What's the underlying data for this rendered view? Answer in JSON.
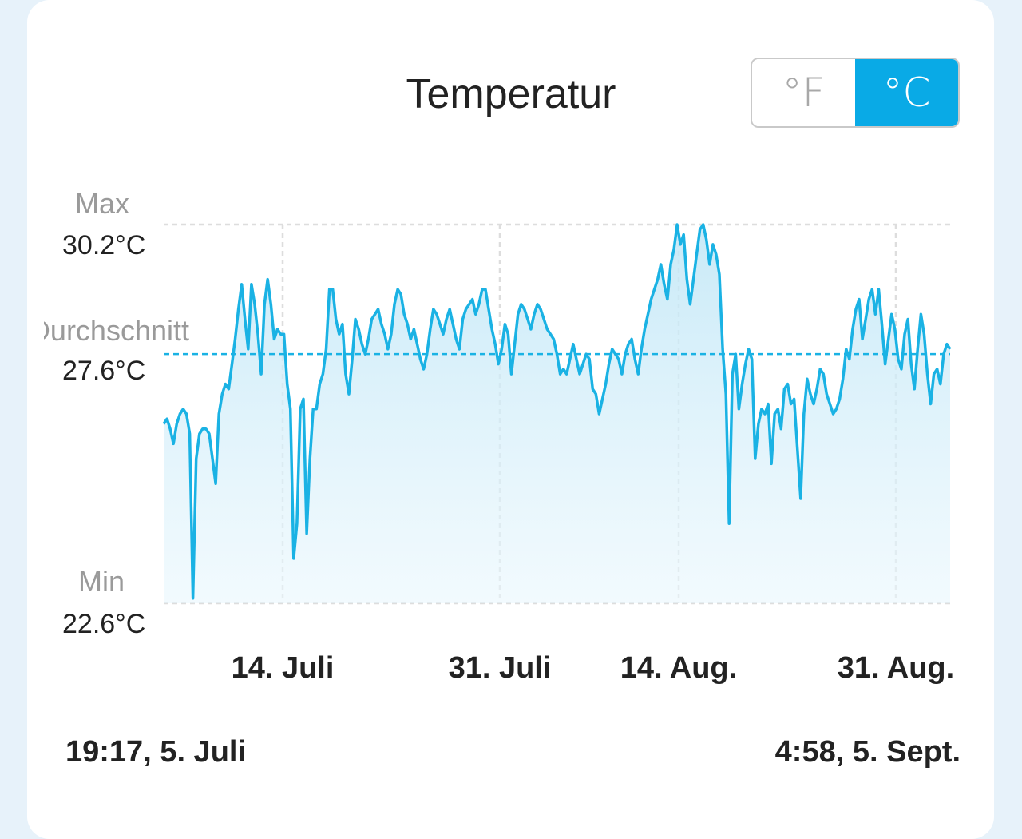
{
  "title": "Temperatur",
  "units": {
    "fahrenheit": "°F",
    "celsius": "°C",
    "selected": "celsius"
  },
  "colors": {
    "accent": "#09aae6",
    "line": "#1ab2e4"
  },
  "chart_data": {
    "type": "area",
    "title": "Temperatur",
    "y_unit": "°C",
    "ylim": [
      22.6,
      30.2
    ],
    "max": {
      "label": "Max",
      "value_text": "30.2°C",
      "value": 30.2
    },
    "avg": {
      "label": "Durchschnitt",
      "value_text": "27.6°C",
      "value": 27.6
    },
    "min": {
      "label": "Min",
      "value_text": "22.6°C",
      "value": 22.6
    },
    "x_start": "19:17,  5. Juli",
    "x_end": "4:58,  5. Sept.",
    "x_ticks": [
      "14. Juli",
      "31. Juli",
      "14. Aug.",
      "31. Aug."
    ],
    "grid": true,
    "series": [
      {
        "values": [
          26.2,
          26.3,
          26.1,
          25.8,
          26.2,
          26.4,
          26.5,
          26.4,
          26.0,
          22.7,
          25.5,
          26.0,
          26.1,
          26.1,
          26.0,
          25.5,
          25.0,
          26.4,
          26.8,
          27.0,
          26.9,
          27.4,
          27.9,
          28.5,
          29.0,
          28.3,
          27.7,
          29.0,
          28.6,
          28.0,
          27.2,
          28.6,
          29.1,
          28.6,
          27.9,
          28.1,
          28.0,
          28.0,
          27.0,
          26.5,
          23.5,
          24.2,
          26.5,
          26.7,
          24.0,
          25.5,
          26.5,
          26.5,
          27.0,
          27.2,
          27.7,
          28.9,
          28.9,
          28.3,
          28.0,
          28.2,
          27.2,
          26.8,
          27.5,
          28.3,
          28.1,
          27.8,
          27.6,
          27.9,
          28.3,
          28.4,
          28.5,
          28.2,
          28.0,
          27.7,
          28.0,
          28.6,
          28.9,
          28.8,
          28.4,
          28.2,
          27.9,
          28.1,
          27.8,
          27.5,
          27.3,
          27.6,
          28.1,
          28.5,
          28.4,
          28.2,
          28.0,
          28.3,
          28.5,
          28.2,
          27.9,
          27.7,
          28.3,
          28.5,
          28.6,
          28.7,
          28.4,
          28.6,
          28.9,
          28.9,
          28.5,
          28.1,
          27.8,
          27.4,
          27.7,
          28.2,
          28.0,
          27.2,
          27.8,
          28.4,
          28.6,
          28.5,
          28.3,
          28.1,
          28.4,
          28.6,
          28.5,
          28.3,
          28.1,
          28.0,
          27.9,
          27.6,
          27.2,
          27.3,
          27.2,
          27.5,
          27.8,
          27.5,
          27.2,
          27.4,
          27.6,
          27.5,
          26.9,
          26.8,
          26.4,
          26.7,
          27.0,
          27.4,
          27.7,
          27.6,
          27.5,
          27.2,
          27.6,
          27.8,
          27.9,
          27.5,
          27.2,
          27.7,
          28.1,
          28.4,
          28.7,
          28.9,
          29.1,
          29.4,
          29.0,
          28.7,
          29.4,
          29.7,
          30.2,
          29.8,
          30.0,
          29.1,
          28.6,
          29.1,
          29.6,
          30.1,
          30.2,
          29.9,
          29.4,
          29.8,
          29.6,
          29.2,
          27.7,
          26.8,
          24.2,
          27.2,
          27.6,
          26.5,
          27.0,
          27.4,
          27.7,
          27.5,
          25.5,
          26.2,
          26.5,
          26.4,
          26.6,
          25.4,
          26.4,
          26.5,
          26.1,
          26.9,
          27.0,
          26.6,
          26.7,
          25.7,
          24.7,
          26.4,
          27.1,
          26.8,
          26.6,
          26.9,
          27.3,
          27.2,
          26.8,
          26.6,
          26.4,
          26.5,
          26.7,
          27.1,
          27.7,
          27.5,
          28.1,
          28.5,
          28.7,
          27.9,
          28.3,
          28.7,
          28.9,
          28.4,
          28.9,
          28.2,
          27.4,
          27.9,
          28.4,
          28.1,
          27.5,
          27.3,
          28.0,
          28.3,
          27.4,
          26.9,
          27.7,
          28.4,
          28.0,
          27.2,
          26.6,
          27.2,
          27.3,
          27.0,
          27.6,
          27.8,
          27.7
        ]
      }
    ]
  }
}
